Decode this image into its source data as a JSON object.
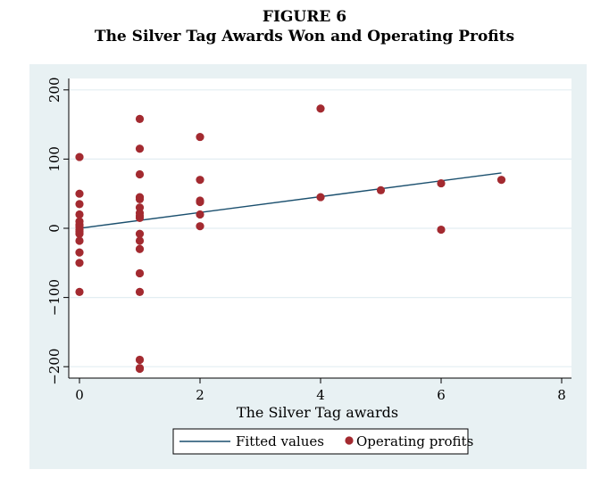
{
  "figure": {
    "label": "FIGURE 6",
    "title": "The Silver Tag Awards Won and Operating Profits"
  },
  "colors": {
    "outer_bg": "#e8f1f3",
    "plot_bg": "#ffffff",
    "grid": "#e3eef2",
    "fit_line": "#1a4f6e",
    "points": "#a32a30"
  },
  "chart_data": {
    "type": "scatter",
    "xlabel": "The Silver Tag awards",
    "ylabel": "",
    "xlim": [
      0,
      8
    ],
    "ylim": [
      -210,
      210
    ],
    "x_ticks": [
      0,
      2,
      4,
      6,
      8
    ],
    "y_ticks": [
      -200,
      -100,
      0,
      100,
      200
    ],
    "y_tick_labels": [
      "−200",
      "−100",
      "0",
      "100",
      "200"
    ],
    "grid": true,
    "legend_position": "bottom",
    "series": [
      {
        "name": "Fitted values",
        "kind": "line",
        "x": [
          0,
          7
        ],
        "y": [
          0,
          80
        ]
      },
      {
        "name": "Operating profits",
        "kind": "scatter",
        "x": [
          0,
          0,
          0,
          0,
          0,
          0,
          0,
          0,
          0,
          0,
          0,
          0,
          0,
          0,
          1,
          1,
          1,
          1,
          1,
          1,
          1,
          1,
          1,
          1,
          1,
          1,
          1,
          1,
          1,
          1,
          1,
          2,
          2,
          2,
          2,
          2,
          2,
          4,
          4,
          5,
          6,
          6,
          7
        ],
        "y": [
          103,
          50,
          35,
          20,
          10,
          5,
          2,
          -2,
          -5,
          -8,
          -18,
          -35,
          -50,
          -92,
          158,
          115,
          78,
          45,
          42,
          30,
          22,
          18,
          15,
          -8,
          -18,
          -30,
          -65,
          -92,
          -190,
          -202,
          -203,
          132,
          70,
          40,
          38,
          20,
          3,
          173,
          45,
          55,
          65,
          -2,
          70
        ]
      }
    ]
  }
}
